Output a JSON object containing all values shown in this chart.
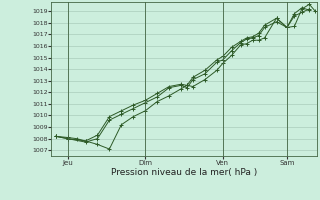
{
  "title": "",
  "xlabel": "Pression niveau de la mer( hPa )",
  "background_color": "#cceedd",
  "grid_color": "#aaccbb",
  "line_color": "#2d5a27",
  "spine_color": "#446644",
  "ylim": [
    1006.5,
    1019.8
  ],
  "yticks": [
    1007,
    1008,
    1009,
    1010,
    1011,
    1012,
    1013,
    1014,
    1015,
    1016,
    1017,
    1018,
    1019
  ],
  "xlim": [
    -3,
    175
  ],
  "day_labels": [
    "Jeu",
    "Dim",
    "Ven",
    "Sam"
  ],
  "day_positions": [
    8,
    60,
    112,
    155
  ],
  "day_vlines": [
    8,
    60,
    112,
    155
  ],
  "series1": [
    [
      0,
      1008.2
    ],
    [
      8,
      1008.0
    ],
    [
      20,
      1007.8
    ],
    [
      28,
      1007.5
    ],
    [
      36,
      1007.1
    ],
    [
      44,
      1009.2
    ],
    [
      52,
      1009.9
    ],
    [
      60,
      1010.4
    ],
    [
      68,
      1011.2
    ],
    [
      76,
      1011.7
    ],
    [
      84,
      1012.3
    ],
    [
      88,
      1012.6
    ],
    [
      92,
      1012.5
    ],
    [
      100,
      1013.1
    ],
    [
      108,
      1013.9
    ],
    [
      112,
      1014.5
    ],
    [
      118,
      1015.2
    ],
    [
      124,
      1016.1
    ],
    [
      128,
      1016.2
    ],
    [
      132,
      1016.5
    ],
    [
      136,
      1016.5
    ],
    [
      140,
      1016.7
    ],
    [
      148,
      1018.4
    ],
    [
      155,
      1017.6
    ],
    [
      160,
      1017.7
    ],
    [
      165,
      1019.2
    ],
    [
      170,
      1019.6
    ],
    [
      174,
      1019.0
    ]
  ],
  "series2": [
    [
      0,
      1008.2
    ],
    [
      8,
      1008.0
    ],
    [
      20,
      1007.7
    ],
    [
      28,
      1008.0
    ],
    [
      36,
      1009.6
    ],
    [
      44,
      1010.1
    ],
    [
      52,
      1010.6
    ],
    [
      60,
      1011.1
    ],
    [
      68,
      1011.6
    ],
    [
      76,
      1012.4
    ],
    [
      84,
      1012.6
    ],
    [
      88,
      1012.4
    ],
    [
      92,
      1013.1
    ],
    [
      100,
      1013.6
    ],
    [
      108,
      1014.6
    ],
    [
      112,
      1014.8
    ],
    [
      118,
      1015.6
    ],
    [
      124,
      1016.3
    ],
    [
      128,
      1016.6
    ],
    [
      132,
      1016.7
    ],
    [
      136,
      1016.9
    ],
    [
      140,
      1017.6
    ],
    [
      148,
      1018.1
    ],
    [
      155,
      1017.6
    ],
    [
      160,
      1018.8
    ],
    [
      165,
      1019.3
    ],
    [
      170,
      1019.1
    ]
  ],
  "series3": [
    [
      0,
      1008.2
    ],
    [
      8,
      1008.1
    ],
    [
      14,
      1008.0
    ],
    [
      20,
      1007.8
    ],
    [
      28,
      1008.3
    ],
    [
      36,
      1009.9
    ],
    [
      44,
      1010.4
    ],
    [
      52,
      1010.9
    ],
    [
      60,
      1011.3
    ],
    [
      68,
      1011.9
    ],
    [
      76,
      1012.5
    ],
    [
      84,
      1012.7
    ],
    [
      88,
      1012.6
    ],
    [
      92,
      1013.3
    ],
    [
      100,
      1013.9
    ],
    [
      108,
      1014.8
    ],
    [
      112,
      1015.1
    ],
    [
      118,
      1015.9
    ],
    [
      124,
      1016.4
    ],
    [
      128,
      1016.7
    ],
    [
      132,
      1016.8
    ],
    [
      136,
      1017.1
    ],
    [
      140,
      1017.8
    ],
    [
      148,
      1018.4
    ],
    [
      155,
      1017.6
    ],
    [
      160,
      1018.6
    ],
    [
      165,
      1018.9
    ],
    [
      170,
      1019.2
    ]
  ]
}
